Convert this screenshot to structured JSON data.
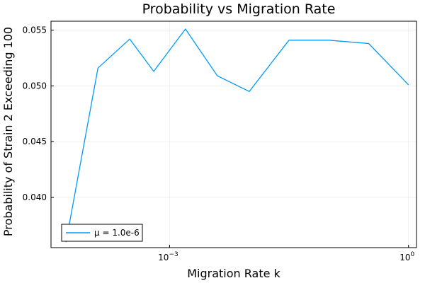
{
  "chart_data": {
    "type": "line",
    "title": "Probability vs Migration Rate",
    "xlabel": "Migration Rate k",
    "ylabel": "Probability of Strain 2 Exceeding 100",
    "x_scale": "log10",
    "xlim": [
      3.24e-05,
      1.26
    ],
    "ylim": [
      0.0355,
      0.0558
    ],
    "x_ticks": [
      {
        "value": 0.001,
        "base": "10",
        "exp": "−3"
      },
      {
        "value": 1,
        "base": "10",
        "exp": "0"
      }
    ],
    "y_ticks": [
      {
        "value": 0.04,
        "label": "0.040"
      },
      {
        "value": 0.045,
        "label": "0.045"
      },
      {
        "value": 0.05,
        "label": "0.050"
      },
      {
        "value": 0.055,
        "label": "0.055"
      }
    ],
    "grid": true,
    "legend_position": "bottom-left",
    "series": [
      {
        "name": "μ = 1.0e-6",
        "color": "#009AFA",
        "x": [
          5e-05,
          0.000126,
          0.000316,
          0.000631,
          0.00158,
          0.00398,
          0.01,
          0.0316,
          0.1,
          0.316,
          1.0
        ],
        "y": [
          0.036,
          0.0516,
          0.0542,
          0.0513,
          0.0551,
          0.0509,
          0.0495,
          0.0541,
          0.0541,
          0.0538,
          0.0501
        ]
      }
    ]
  }
}
